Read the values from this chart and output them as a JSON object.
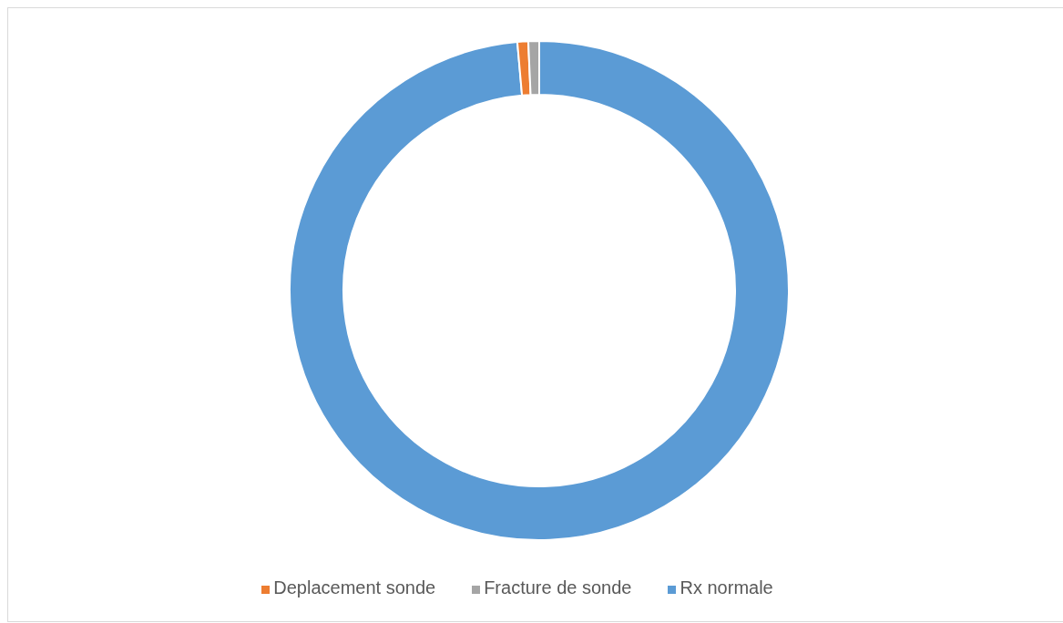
{
  "chart_data": {
    "type": "donut",
    "categories": [
      "Rx normale",
      "Deplacement sonde",
      "Fracture de sonde"
    ],
    "values": [
      98.6,
      0.7,
      0.7
    ],
    "colors": [
      "#5b9bd5",
      "#ed7d31",
      "#a5a5a5"
    ],
    "legend": "bottom"
  }
}
